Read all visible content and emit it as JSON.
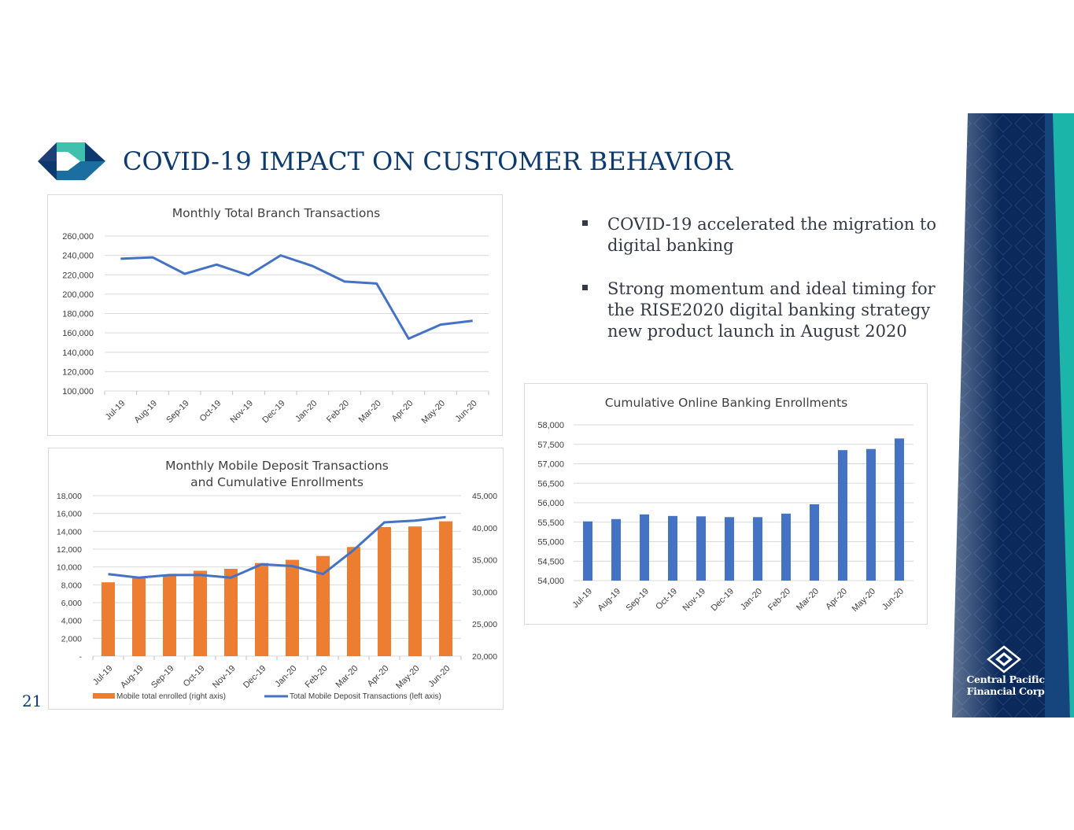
{
  "slide": {
    "title": "COVID-19 IMPACT ON CUSTOMER BEHAVIOR",
    "page_number": "21",
    "bullets": [
      "COVID-19 accelerated the migration to digital banking",
      "Strong momentum and ideal timing for the RISE2020 digital banking strategy new product launch in August 2020"
    ],
    "company": {
      "line1": "Central Pacific",
      "line2": "Financial Corp"
    },
    "colors": {
      "navy": "#0d3a6e",
      "teal": "#3fc1ad",
      "line_blue": "#4472c4",
      "bar_orange": "#ed7d31",
      "panel_navy": "#0b2a5b",
      "panel_teal": "#1bb5a9"
    }
  },
  "chart_data": [
    {
      "type": "line",
      "title": "Monthly Total Branch Transactions",
      "categories": [
        "Jul-19",
        "Aug-19",
        "Sep-19",
        "Oct-19",
        "Nov-19",
        "Dec-19",
        "Jan-20",
        "Feb-20",
        "Mar-20",
        "Apr-20",
        "May-20",
        "Jun-20"
      ],
      "values": [
        236500,
        238000,
        221000,
        230500,
        219500,
        240000,
        229000,
        213000,
        211000,
        154000,
        168500,
        172500
      ],
      "ylim": [
        100000,
        260000
      ],
      "yticks": [
        100000,
        120000,
        140000,
        160000,
        180000,
        200000,
        220000,
        240000,
        260000
      ],
      "ytick_labels": [
        "100,000",
        "120,000",
        "140,000",
        "160,000",
        "180,000",
        "200,000",
        "220,000",
        "240,000",
        "260,000"
      ],
      "grid": true,
      "color": "#4472c4"
    },
    {
      "type": "bar",
      "title": [
        "Monthly Mobile Deposit Transactions",
        "and Cumulative Enrollments"
      ],
      "categories": [
        "Jul-19",
        "Aug-19",
        "Sep-19",
        "Oct-19",
        "Nov-19",
        "Dec-19",
        "Jan-20",
        "Feb-20",
        "Mar-20",
        "Apr-20",
        "May-20",
        "Jun-20"
      ],
      "series": [
        {
          "name": "Mobile total enrolled (right axis)",
          "type": "bar",
          "axis": "right",
          "color": "#ed7d31",
          "values": [
            31500,
            32200,
            32600,
            33300,
            33600,
            34500,
            35000,
            35600,
            37000,
            40100,
            40200,
            41000
          ]
        },
        {
          "name": "Total Mobile Deposit Transactions (left axis)",
          "type": "line",
          "axis": "left",
          "color": "#4472c4",
          "values": [
            9200,
            8800,
            9100,
            9100,
            8800,
            10300,
            10100,
            9200,
            11900,
            15000,
            15200,
            15600
          ]
        }
      ],
      "ylim_left": [
        0,
        18000
      ],
      "yticks_left": [
        0,
        2000,
        4000,
        6000,
        8000,
        10000,
        12000,
        14000,
        16000,
        18000
      ],
      "ytick_labels_left": [
        "-",
        "2,000",
        "4,000",
        "6,000",
        "8,000",
        "10,000",
        "12,000",
        "14,000",
        "16,000",
        "18,000"
      ],
      "ylim_right": [
        20000,
        45000
      ],
      "yticks_right": [
        20000,
        25000,
        30000,
        35000,
        40000,
        45000
      ],
      "ytick_labels_right": [
        "20,000",
        "25,000",
        "30,000",
        "35,000",
        "40,000",
        "45,000"
      ],
      "grid": true,
      "legend": "bottom"
    },
    {
      "type": "bar",
      "title": "Cumulative Online Banking Enrollments",
      "categories": [
        "Jul-19",
        "Aug-19",
        "Sep-19",
        "Oct-19",
        "Nov-19",
        "Dec-19",
        "Jan-20",
        "Feb-20",
        "Mar-20",
        "Apr-20",
        "May-20",
        "Jun-20"
      ],
      "values": [
        55520,
        55580,
        55700,
        55660,
        55650,
        55630,
        55630,
        55720,
        55960,
        57350,
        57380,
        57650
      ],
      "ylim": [
        54000,
        58000
      ],
      "yticks": [
        54000,
        54500,
        55000,
        55500,
        56000,
        56500,
        57000,
        57500,
        58000
      ],
      "ytick_labels": [
        "54,000",
        "54,500",
        "55,000",
        "55,500",
        "56,000",
        "56,500",
        "57,000",
        "57,500",
        "58,000"
      ],
      "grid": true,
      "color": "#4472c4"
    }
  ]
}
